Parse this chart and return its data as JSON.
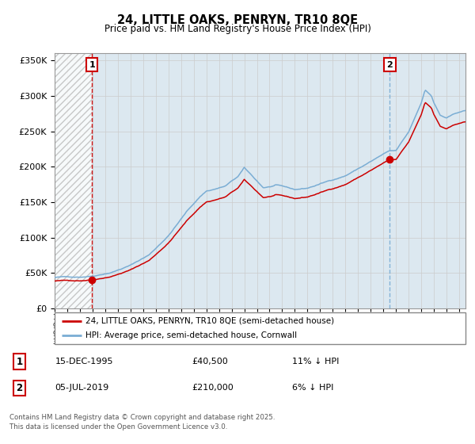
{
  "title1": "24, LITTLE OAKS, PENRYN, TR10 8QE",
  "title2": "Price paid vs. HM Land Registry's House Price Index (HPI)",
  "sale1_date": "15-DEC-1995",
  "sale1_price": 40500,
  "sale1_label": "1",
  "sale1_pct": "11% ↓ HPI",
  "sale2_date": "05-JUL-2019",
  "sale2_price": 210000,
  "sale2_label": "2",
  "sale2_pct": "6% ↓ HPI",
  "legend1": "24, LITTLE OAKS, PENRYN, TR10 8QE (semi-detached house)",
  "legend2": "HPI: Average price, semi-detached house, Cornwall",
  "footer": "Contains HM Land Registry data © Crown copyright and database right 2025.\nThis data is licensed under the Open Government Licence v3.0.",
  "sale1_year": 1995.96,
  "sale2_year": 2019.51,
  "ylim_min": 0,
  "ylim_max": 360000,
  "xlim_min": 1993.0,
  "xlim_max": 2025.5,
  "hatch_end": 1995.96,
  "red_line_color": "#cc0000",
  "blue_line_color": "#7aadd4",
  "hatch_color": "#cccccc",
  "grid_color": "#cccccc",
  "bg_color": "#dce8f0",
  "plot_bg": "#ffffff",
  "dashed_red": "#cc0000",
  "dashed_blue": "#7aadd4",
  "box_red_edge": "#cc0000"
}
